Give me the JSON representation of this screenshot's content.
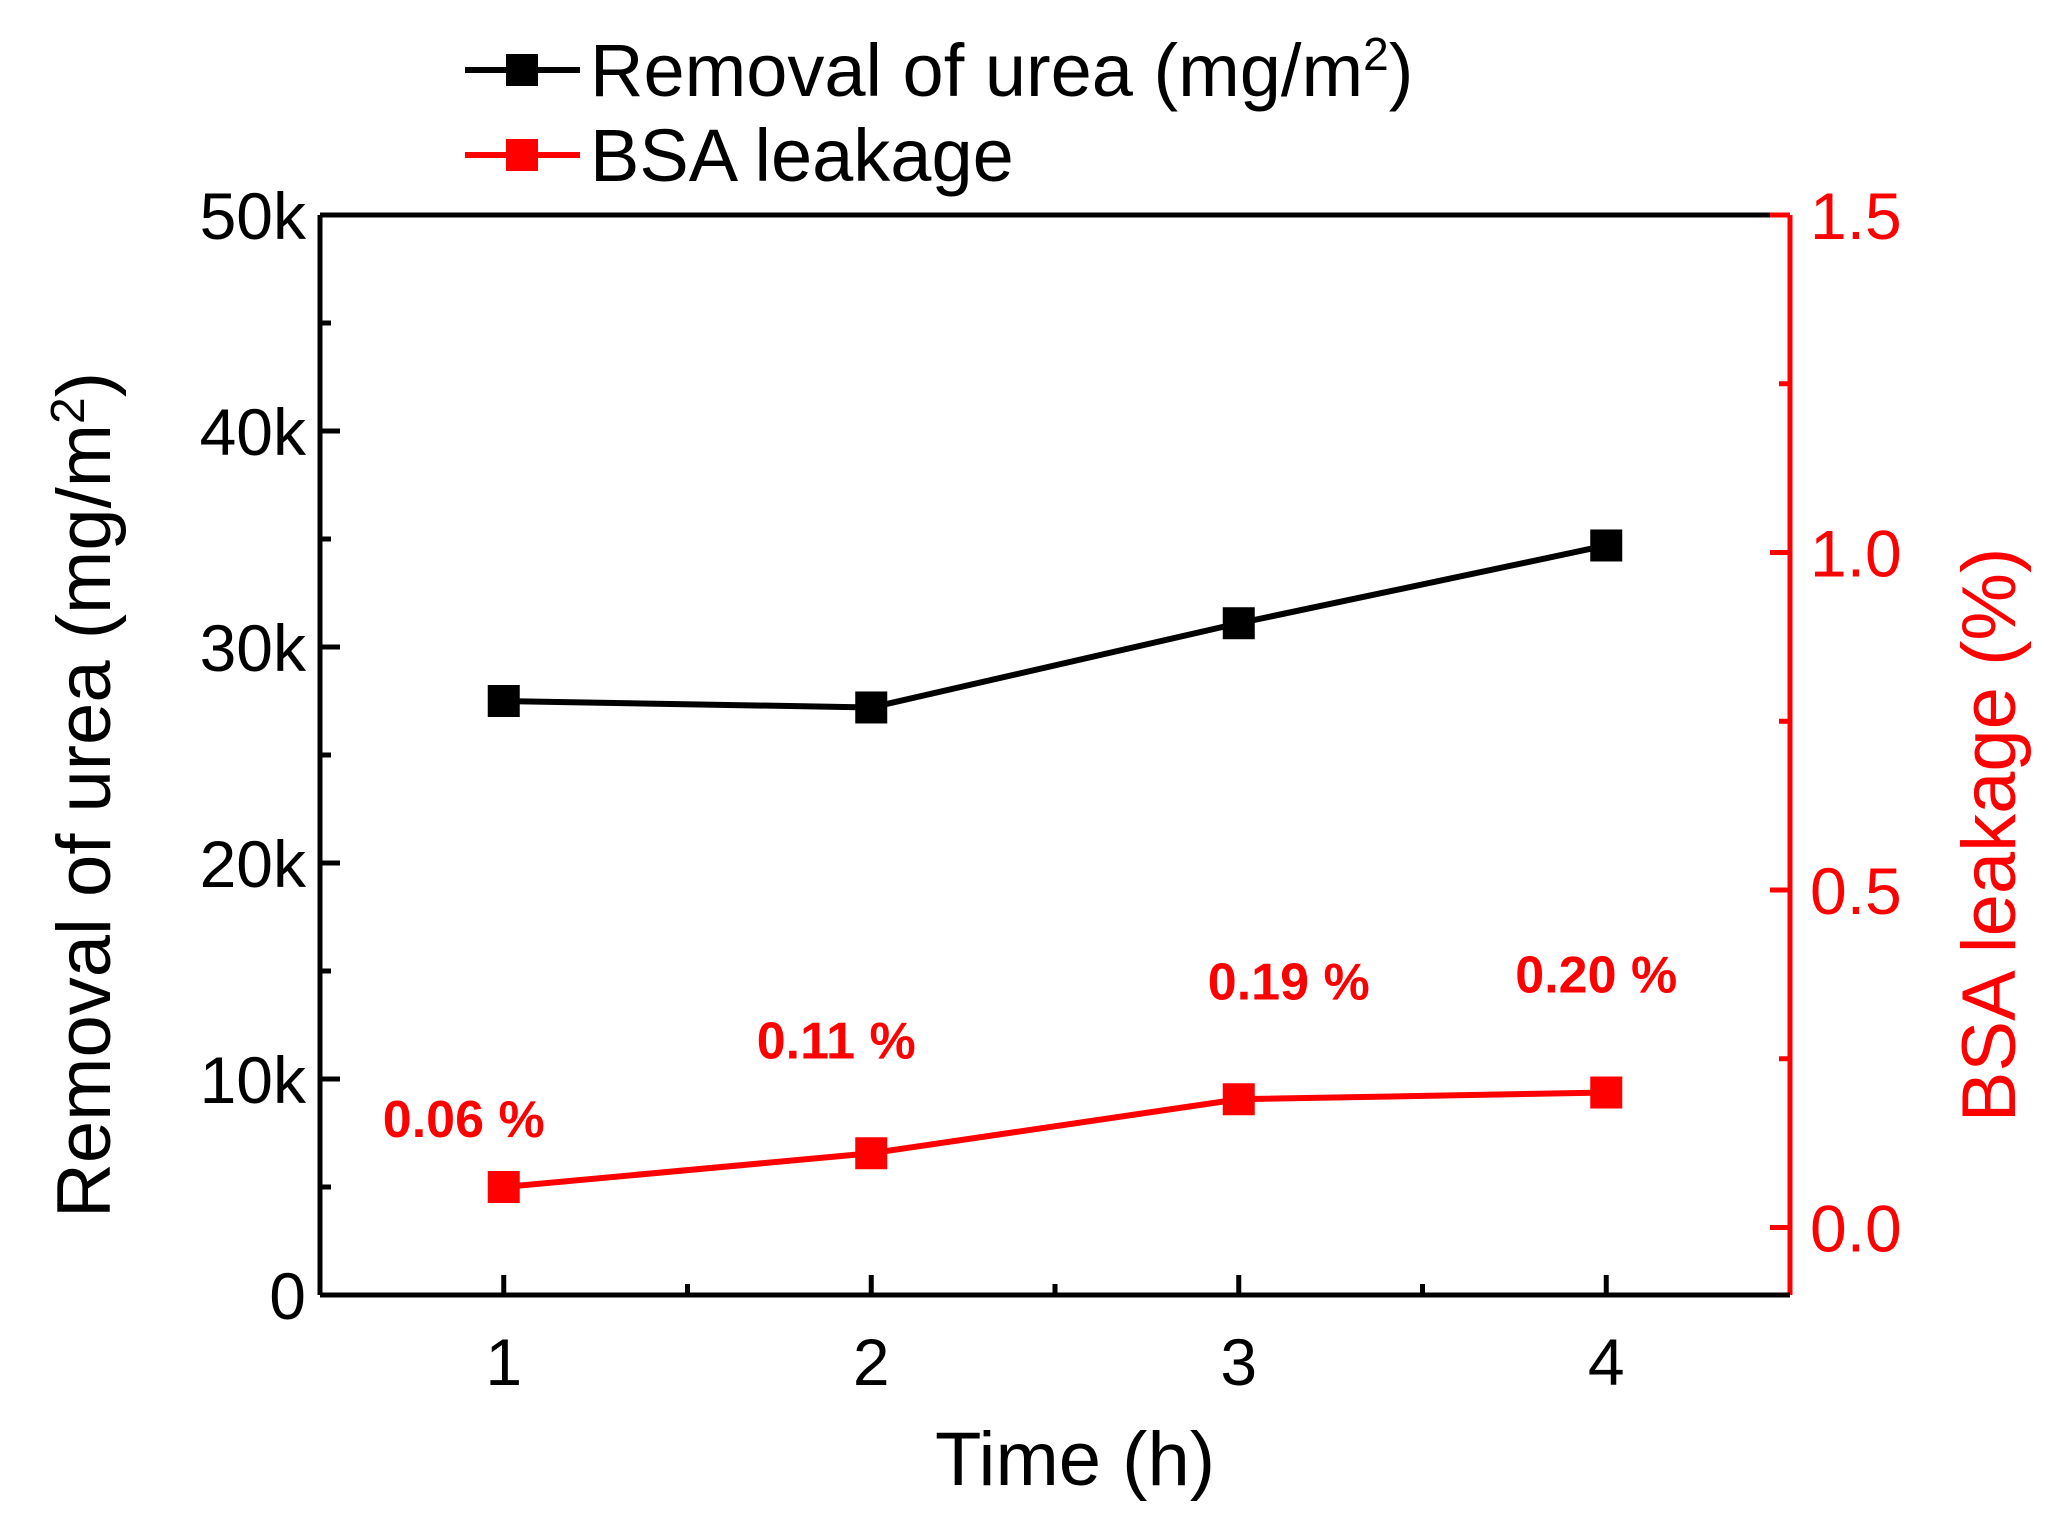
{
  "chart_data": {
    "type": "line",
    "x": [
      1,
      2,
      3,
      4
    ],
    "xlabel": "Time (h)",
    "xticks": [
      "1",
      "2",
      "3",
      "4"
    ],
    "xlim": [
      0.5,
      4.5
    ],
    "series": [
      {
        "name": "Removal of urea (mg/m²)",
        "axis": "left",
        "color": "#000000",
        "marker": "square",
        "values": [
          27500,
          27200,
          31100,
          34700
        ]
      },
      {
        "name": "BSA leakage",
        "axis": "right",
        "color": "#ff0000",
        "marker": "square",
        "values": [
          0.06,
          0.11,
          0.19,
          0.2
        ],
        "labels": [
          "0.06 %",
          "0.11 %",
          "0.19 %",
          "0.20 %"
        ]
      }
    ],
    "left_axis": {
      "title_main": "Removal of urea (mg/m",
      "title_sup": "2",
      "title_end": ")",
      "ylim": [
        0,
        50000
      ],
      "ticks": [
        0,
        10000,
        20000,
        30000,
        40000,
        50000
      ],
      "tick_labels": [
        "0",
        "10k",
        "20k",
        "30k",
        "40k",
        "50k"
      ],
      "color": "#000000"
    },
    "right_axis": {
      "title": "BSA leakage (%)",
      "ylim": [
        -0.1,
        1.5
      ],
      "ticks": [
        0.0,
        0.5,
        1.0,
        1.5
      ],
      "tick_labels": [
        "0.0",
        "0.5",
        "1.0",
        "1.5"
      ],
      "color": "#ff0000"
    },
    "legend": {
      "placement": "top",
      "entries": [
        {
          "main": "Removal of urea (mg/m",
          "sup": "2",
          "end": ")",
          "color": "#000000"
        },
        {
          "main": "BSA leakage",
          "sup": "",
          "end": "",
          "color": "#ff0000"
        }
      ]
    }
  }
}
